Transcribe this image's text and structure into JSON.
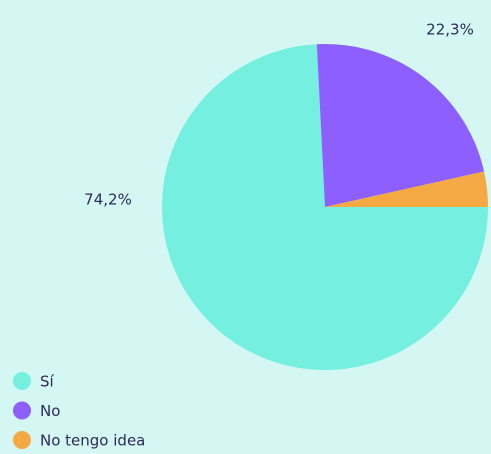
{
  "chart_data": {
    "type": "pie",
    "categories": [
      "Sí",
      "No",
      "No tengo idea"
    ],
    "values": [
      74.2,
      22.3,
      3.5
    ],
    "value_labels": [
      "74,2%",
      "22,3%",
      null
    ],
    "colors": [
      "#74efe0",
      "#8c5ffe",
      "#f4a942"
    ]
  }
}
